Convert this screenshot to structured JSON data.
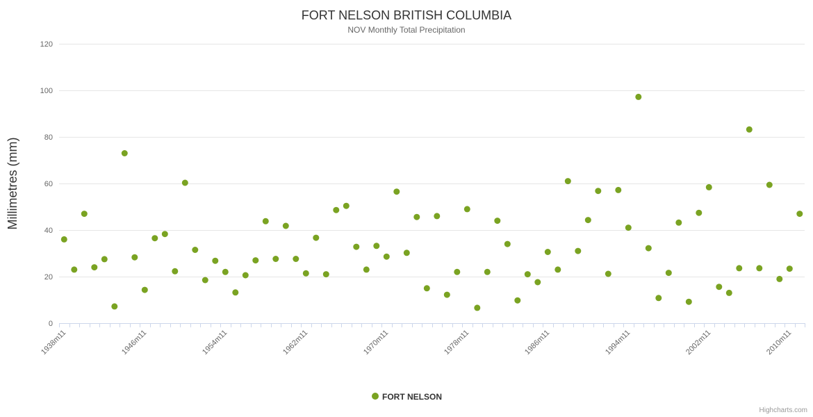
{
  "chart_data": {
    "type": "scatter",
    "title": "FORT NELSON BRITISH COLUMBIA",
    "subtitle": "NOV Monthly Total Precipitation",
    "ylabel": "Millimetres (mm)",
    "ylim": [
      0,
      120
    ],
    "yticks": [
      0,
      20,
      40,
      60,
      80,
      100,
      120
    ],
    "x_start_year": 1938,
    "x_suffix": "m11",
    "xtick_interval": 8,
    "xtick_labels": [
      "1938m11",
      "1946m11",
      "1954m11",
      "1962m11",
      "1970m11",
      "1978m11",
      "1986m11",
      "1994m11",
      "2002m11",
      "2010m11"
    ],
    "grid": true,
    "legend_position": "bottom-center",
    "credit": "Highcharts.com",
    "series": [
      {
        "name": "FORT NELSON",
        "color": "#7aa322",
        "marker": "circle",
        "values": [
          36,
          23,
          47,
          24,
          27.5,
          7.2,
          73,
          28.3,
          14.3,
          36.5,
          38.3,
          22.3,
          60.3,
          31.5,
          18.5,
          26.8,
          22,
          13.2,
          20.6,
          27,
          43.8,
          27.6,
          41.8,
          27.6,
          21.4,
          36.7,
          21,
          48.6,
          50.4,
          32.8,
          23,
          33.2,
          28.6,
          56.5,
          30.2,
          45.6,
          15,
          46,
          12.2,
          22,
          49,
          6.6,
          22,
          44,
          34,
          9.8,
          21,
          17.6,
          30.6,
          23,
          61,
          31,
          44.3,
          56.8,
          21.2,
          57.2,
          41,
          97.2,
          32.2,
          10.8,
          21.6,
          43.2,
          9.2,
          47.4,
          58.4,
          15.6,
          13,
          23.6,
          83.2,
          23.6,
          59.4,
          19,
          23.4,
          47
        ]
      }
    ]
  }
}
